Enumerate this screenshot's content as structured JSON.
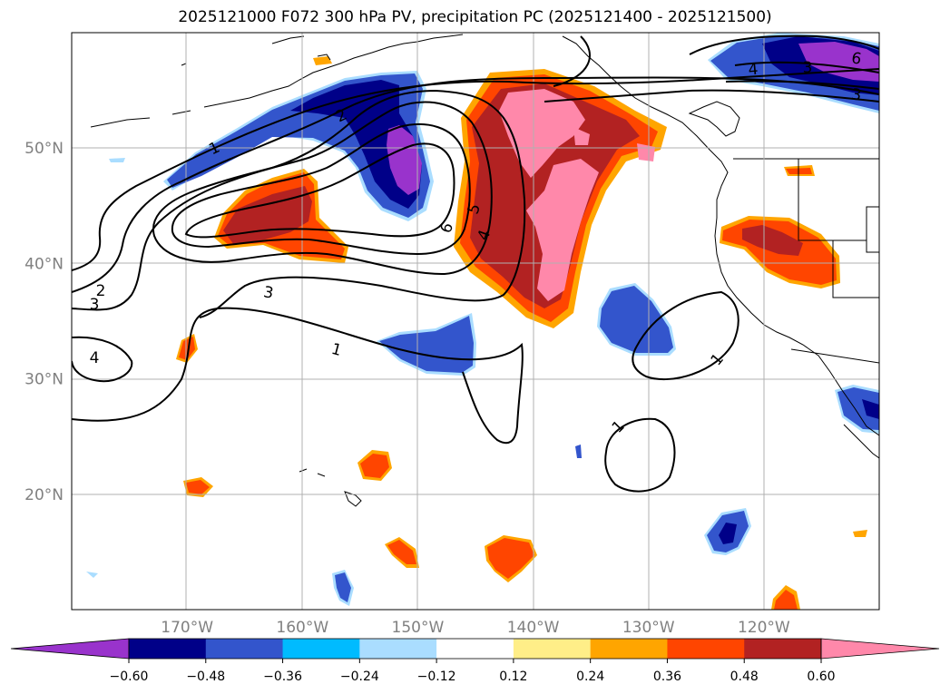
{
  "title": "2025121000 F072 300 hPa PV, precipitation PC (2025121400 - 2025121500)",
  "map": {
    "lon_range": [
      -180,
      -110
    ],
    "lat_range": [
      10,
      60
    ],
    "lat_ticks": [
      {
        "value": 50,
        "label": "50°N"
      },
      {
        "value": 40,
        "label": "40°N"
      },
      {
        "value": 30,
        "label": "30°N"
      },
      {
        "value": 20,
        "label": "20°N"
      }
    ],
    "lon_ticks": [
      {
        "value": -170,
        "label": "170°W"
      },
      {
        "value": -160,
        "label": "160°W"
      },
      {
        "value": -150,
        "label": "150°W"
      },
      {
        "value": -140,
        "label": "140°W"
      },
      {
        "value": -130,
        "label": "130°W"
      },
      {
        "value": -120,
        "label": "120°W"
      }
    ],
    "grid": true,
    "tick_color": "#808080",
    "pv_contour_labels": [
      "1",
      "1",
      "1",
      "1",
      "2",
      "2",
      "3",
      "3",
      "4",
      "4",
      "4",
      "5",
      "6",
      "6"
    ]
  },
  "colorbar": {
    "levels": [
      "−0.60",
      "−0.48",
      "−0.36",
      "−0.24",
      "−0.12",
      "0.12",
      "0.24",
      "0.36",
      "0.48",
      "0.60"
    ],
    "colors": [
      "#9933cc",
      "#000088",
      "#3355cc",
      "#00bbff",
      "#aaddff",
      "#ffffff",
      "#ffee88",
      "#ffa500",
      "#ff4500",
      "#b22222",
      "#ff88aa"
    ],
    "extend": "both"
  }
}
